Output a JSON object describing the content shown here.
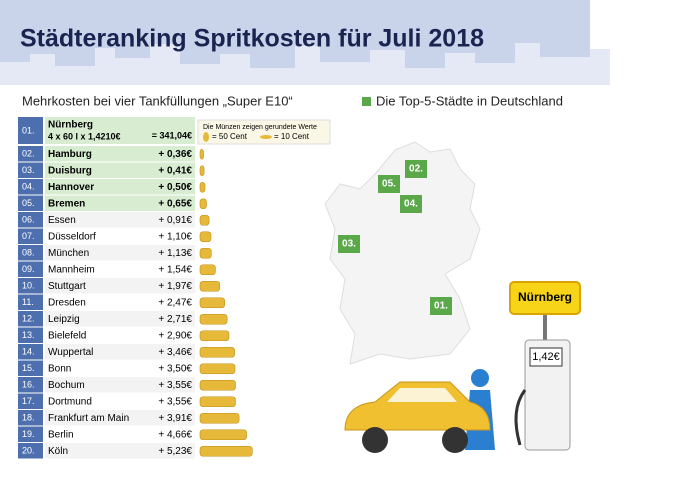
{
  "header": {
    "title": "Städteranking Spritkosten für Juli 2018",
    "subtitle": "Mehrkosten bei vier Tankfüllungen „Super E10“",
    "legend": "Die Top-5-Städte in Deutschland"
  },
  "note": {
    "text": "Die Münzen zeigen gerundete Werte",
    "coin_large": "= 50 Cent",
    "coin_small": "= 10 Cent"
  },
  "table": {
    "rows": [
      [
        "01.",
        "Nürnberg",
        "4 x 60 l x 1,4210€",
        "= 341,04€"
      ],
      [
        "02.",
        "Hamburg",
        "+ 0,36€"
      ],
      [
        "03.",
        "Duisburg",
        "+ 0,41€"
      ],
      [
        "04.",
        "Hannover",
        "+ 0,50€"
      ],
      [
        "05.",
        "Bremen",
        "+ 0,65€"
      ],
      [
        "06.",
        "Essen",
        "+ 0,91€"
      ],
      [
        "07.",
        "Düsseldorf",
        "+ 1,10€"
      ],
      [
        "08.",
        "München",
        "+ 1,13€"
      ],
      [
        "09.",
        "Mannheim",
        "+ 1,54€"
      ],
      [
        "10.",
        "Stuttgart",
        "+ 1,97€"
      ],
      [
        "11.",
        "Dresden",
        "+ 2,47€"
      ],
      [
        "12.",
        "Leipzig",
        "+ 2,71€"
      ],
      [
        "13.",
        "Bielefeld",
        "+ 2,90€"
      ],
      [
        "14.",
        "Wuppertal",
        "+ 3,46€"
      ],
      [
        "15.",
        "Bonn",
        "+ 3,50€"
      ],
      [
        "16.",
        "Bochum",
        "+ 3,55€"
      ],
      [
        "17.",
        "Dortmund",
        "+ 3,55€"
      ],
      [
        "18.",
        "Frankfurt am Main",
        "+ 3,91€"
      ],
      [
        "19.",
        "Berlin",
        "+ 4,66€"
      ],
      [
        "20.",
        "Köln",
        "+ 5,23€"
      ]
    ]
  },
  "map": {
    "labels": [
      "01.",
      "02.",
      "03.",
      "04.",
      "05."
    ]
  },
  "sign": "Nürnberg",
  "pump_price": "1,42€"
}
